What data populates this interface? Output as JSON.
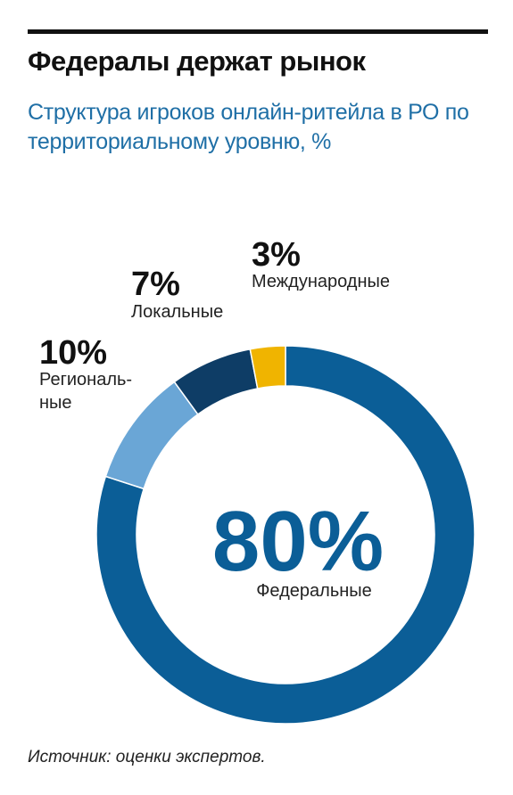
{
  "title": "Федералы держат рынок",
  "subtitle": "Структура игроков онлайн-ритейла в РО по территориальному уровню, %",
  "source": "Источник: оценки экспертов.",
  "chart_data": {
    "type": "pie",
    "donut": true,
    "unit": "%",
    "slices": [
      {
        "label": "Федеральные",
        "value": 80,
        "display": "80%",
        "color": "#0b5e97"
      },
      {
        "label_lines": [
          "Региональ-",
          "ные"
        ],
        "value": 10,
        "display": "10%",
        "color": "#6aa6d6"
      },
      {
        "label": "Локальные",
        "value": 7,
        "display": "7%",
        "color": "#0e3d66"
      },
      {
        "label": "Международные",
        "value": 3,
        "display": "3%",
        "color": "#f0b400"
      }
    ]
  }
}
